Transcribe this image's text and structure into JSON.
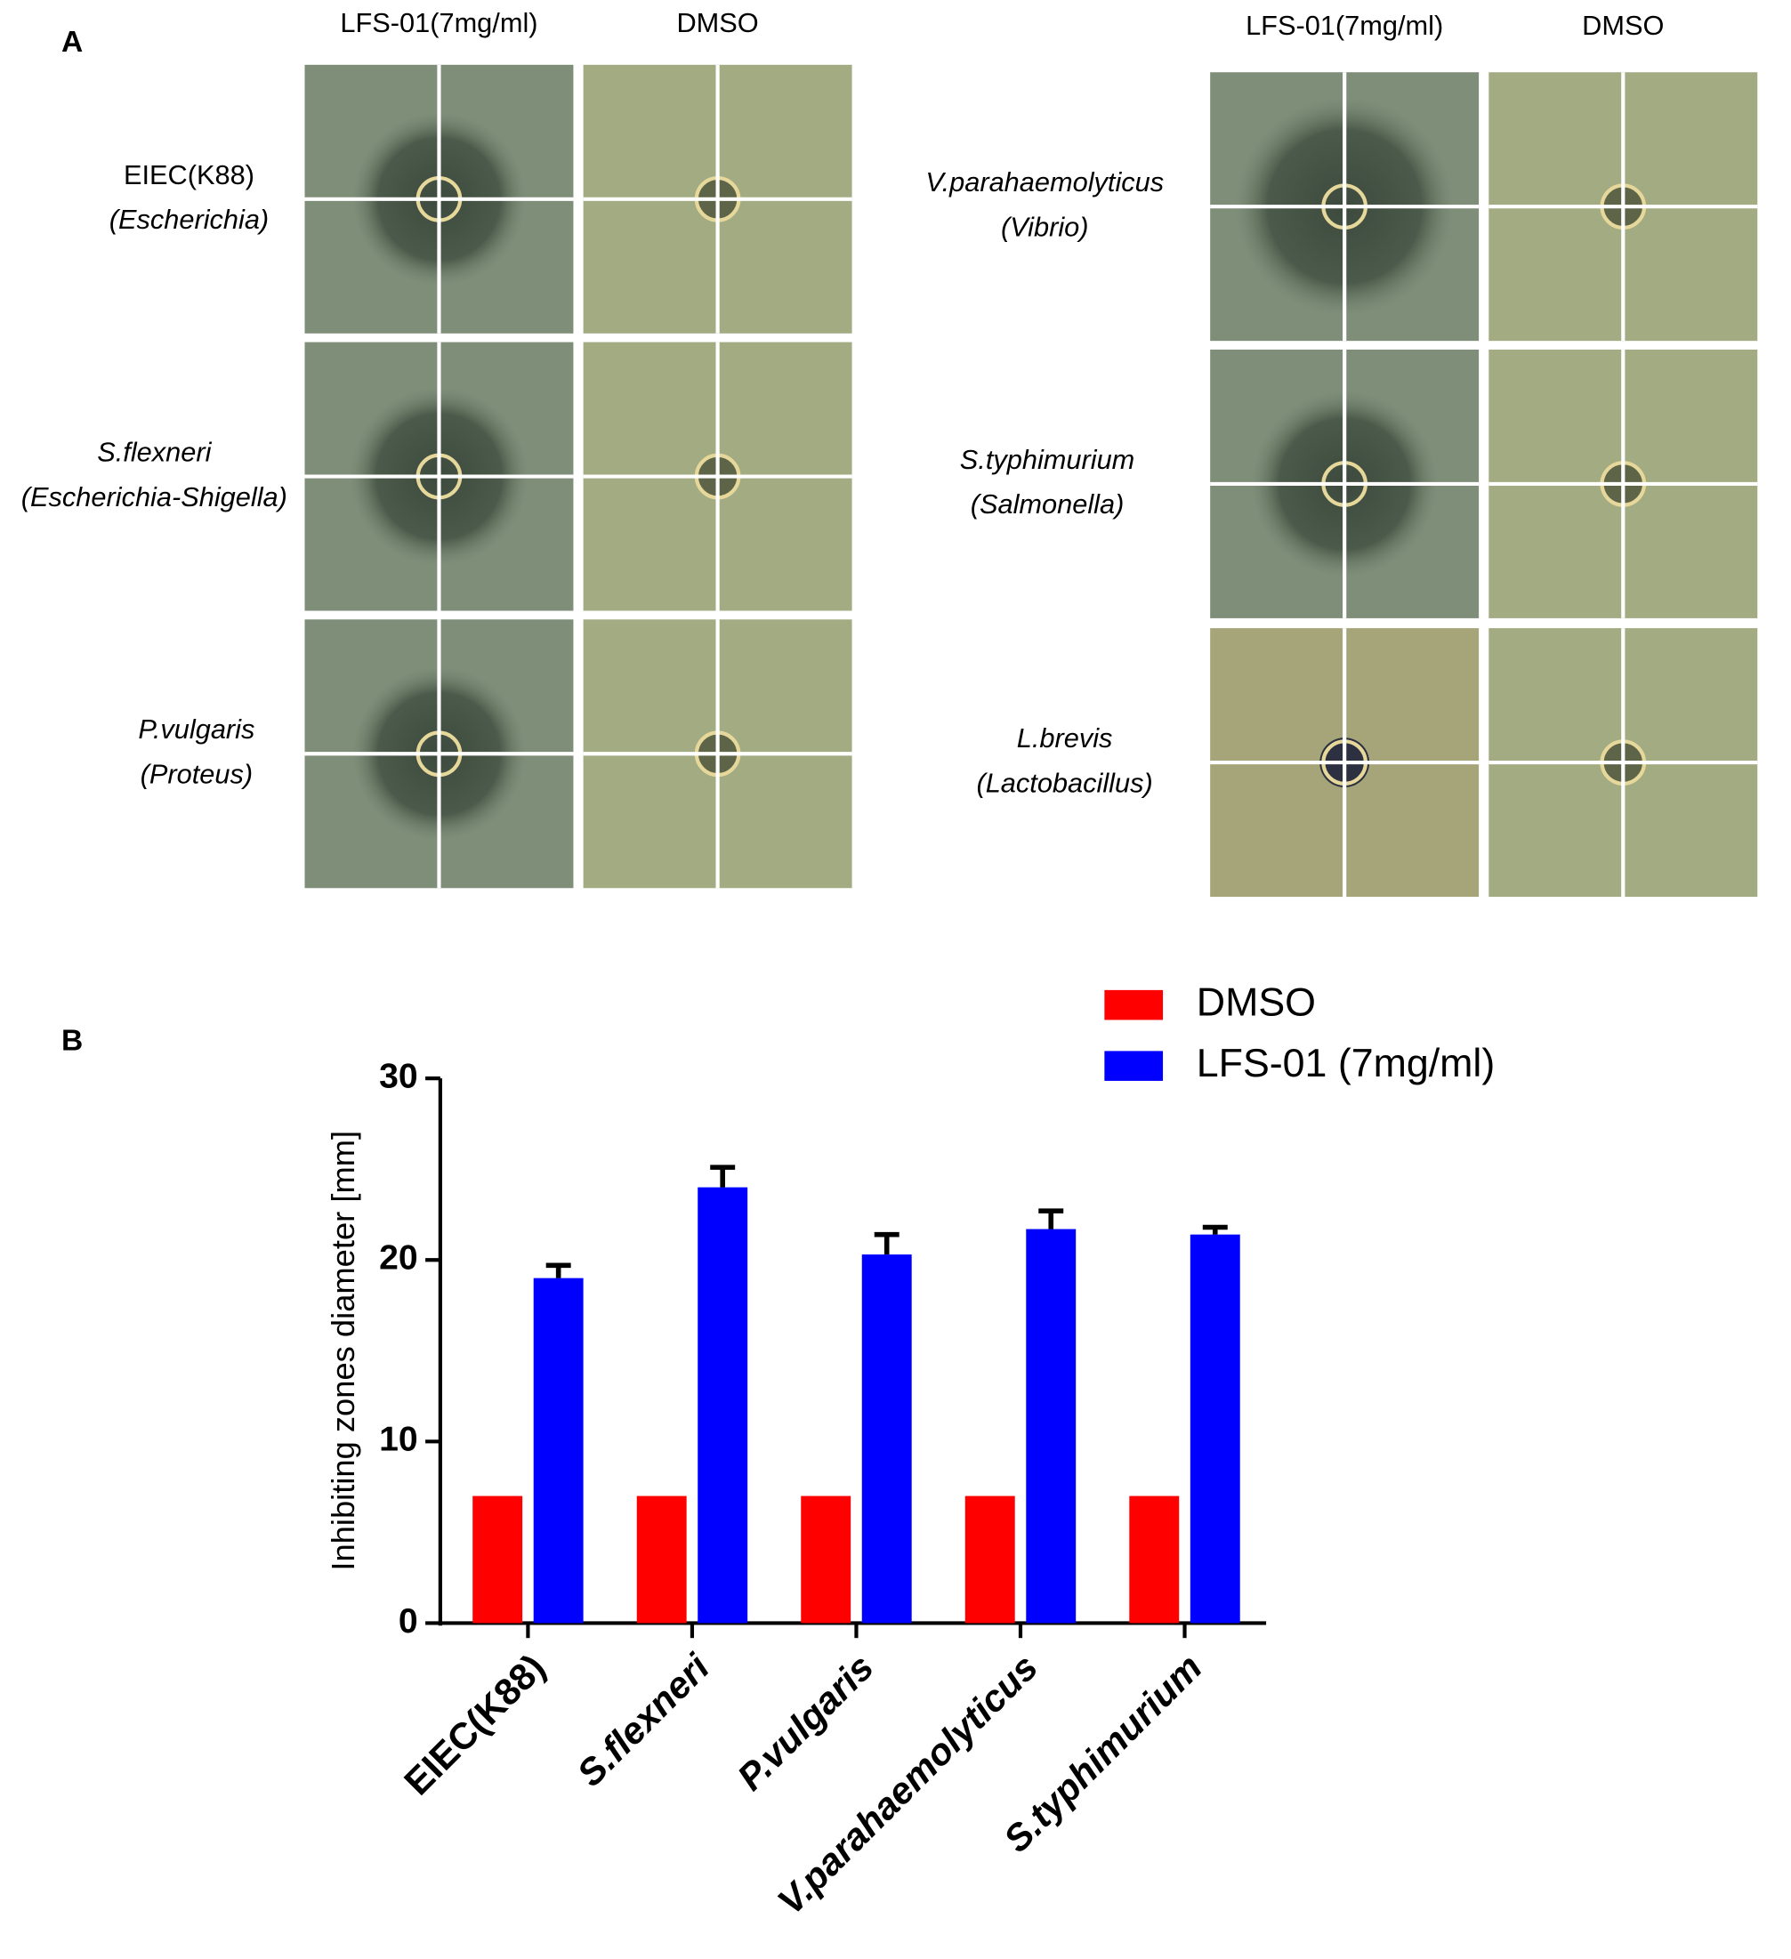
{
  "panel_a": {
    "label": "A",
    "groups": [
      {
        "headers": [
          "LFS-01(7mg/ml)",
          "DMSO"
        ],
        "rows": [
          {
            "name": "EIEC(K88)",
            "genus": "(Escherichia)"
          },
          {
            "name": "S.flexneri",
            "genus": "(Escherichia-Shigella)"
          },
          {
            "name": "P.vulgaris",
            "genus": "(Proteus)"
          }
        ]
      },
      {
        "headers": [
          "LFS-01(7mg/ml)",
          "DMSO"
        ],
        "rows": [
          {
            "name": "V.parahaemolyticus",
            "genus": "(Vibrio)"
          },
          {
            "name": "S.typhimurium",
            "genus": "(Salmonella)"
          },
          {
            "name": "L.brevis",
            "genus": "(Lactobacillus)"
          }
        ]
      }
    ]
  },
  "panel_b_label": "B",
  "chart_data": {
    "type": "bar",
    "ylabel": "Inhibiting zones diameter [mm]",
    "categories": [
      "EIEC(K88)",
      "S.flexneri",
      "P.vulgaris",
      "V.parahaemolyticus",
      "S.typhimurium"
    ],
    "series": [
      {
        "name": "DMSO",
        "color": "#ff0000",
        "values": [
          7,
          7,
          7,
          7,
          7
        ]
      },
      {
        "name": "LFS-01 (7mg/ml)",
        "color": "#0000ff",
        "values": [
          19.0,
          24.0,
          20.3,
          21.7,
          21.4
        ],
        "errors": [
          0.7,
          1.1,
          1.1,
          1.0,
          0.4
        ]
      }
    ],
    "ylim": [
      0,
      30
    ],
    "yticks": [
      0,
      10,
      20,
      30
    ],
    "legend": "top-right"
  }
}
